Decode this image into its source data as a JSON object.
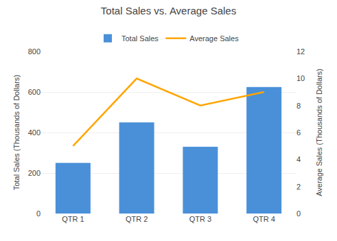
{
  "chart_data": {
    "type": "bar",
    "title": "Total Sales vs. Average Sales",
    "categories": [
      "QTR 1",
      "QTR 2",
      "QTR 3",
      "QTR 4"
    ],
    "series": [
      {
        "name": "Total Sales",
        "type": "bar",
        "color": "#4A90D9",
        "values": [
          250,
          450,
          330,
          625
        ]
      },
      {
        "name": "Average Sales",
        "type": "line",
        "color": "#FFA500",
        "values": [
          5,
          10,
          8,
          9
        ],
        "axis": "y2"
      }
    ],
    "ylabel": "Total Sales (Thousands of Dollars)",
    "y2label": "Average Sales (Thousands of Dollars)",
    "ylim": [
      0,
      800
    ],
    "yticks": [
      0,
      200,
      400,
      600,
      800
    ],
    "y2lim": [
      0,
      12
    ],
    "y2ticks": [
      0,
      2,
      4,
      6,
      8,
      10,
      12
    ],
    "grid": true,
    "legend": "top"
  }
}
